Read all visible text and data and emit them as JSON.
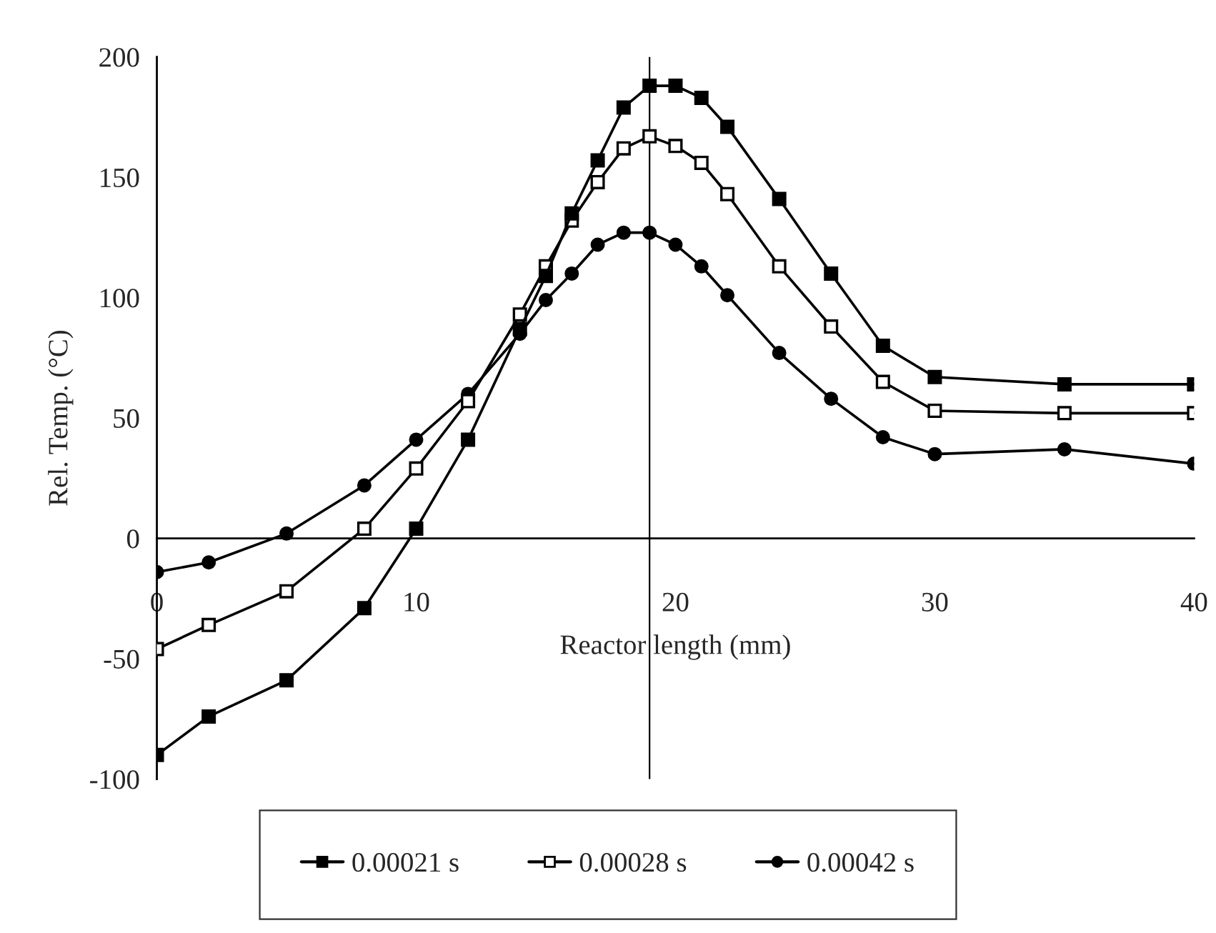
{
  "chart_data": {
    "type": "line",
    "xlabel": "Reactor length (mm)",
    "ylabel": "Rel. Temp. (°C)",
    "x": [
      0,
      2,
      5,
      8,
      10,
      12,
      14,
      15,
      16,
      17,
      18,
      19,
      20,
      21,
      22,
      24,
      26,
      28,
      30,
      35,
      40
    ],
    "series": [
      {
        "name": "0.00021 s",
        "color": "#000000",
        "marker": "square",
        "values": [
          -90,
          -74,
          -59,
          -29,
          4,
          41,
          87,
          109,
          135,
          157,
          179,
          188,
          188,
          183,
          171,
          141,
          110,
          80,
          67,
          64,
          64
        ]
      },
      {
        "name": "0.00028 s",
        "color": "#000000",
        "marker": "square_open",
        "values": [
          -46,
          -36,
          -22,
          4,
          29,
          57,
          93,
          113,
          132,
          148,
          162,
          167,
          163,
          156,
          143,
          113,
          88,
          65,
          53,
          52,
          52
        ]
      },
      {
        "name": "0.00042 s",
        "color": "#000000",
        "marker": "circle",
        "values": [
          -14,
          -10,
          2,
          22,
          41,
          60,
          85,
          99,
          110,
          122,
          127,
          127,
          122,
          113,
          101,
          77,
          58,
          42,
          35,
          37,
          31
        ]
      }
    ],
    "xlim": [
      0,
      40
    ],
    "xticks": [
      0,
      10,
      20,
      30,
      40
    ],
    "ylim": [
      -100,
      200
    ],
    "yticks": [
      -100,
      -50,
      0,
      50,
      100,
      150,
      200
    ],
    "ref_lines": [
      {
        "axis": "x",
        "value": 19,
        "color": "#000000"
      }
    ],
    "grid": false,
    "legend": "bottom",
    "line_style": "solid"
  }
}
